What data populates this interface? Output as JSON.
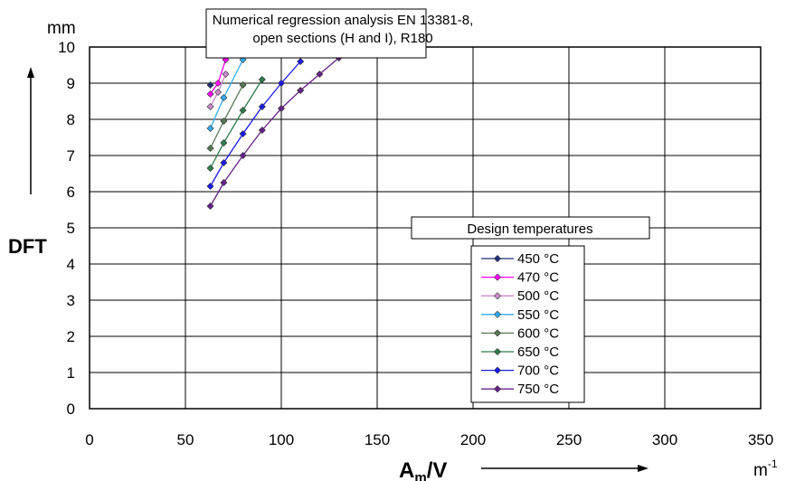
{
  "chart_data": {
    "type": "line",
    "title_lines": [
      "Numerical regression analysis EN 13381-8,",
      "open sections (H and I), R180"
    ],
    "legend_title": "Design temperatures",
    "xlabel_main": "A",
    "xlabel_sub": "m",
    "xlabel_tail": "/V",
    "x_unit_base": "m",
    "x_unit_exp": "-1",
    "ylabel": "DFT",
    "y_unit": "mm",
    "xlim": [
      0,
      350
    ],
    "ylim": [
      0,
      10
    ],
    "x_ticks": [
      "0",
      "50",
      "100",
      "150",
      "200",
      "250",
      "300",
      "350"
    ],
    "y_ticks": [
      "0",
      "1",
      "2",
      "3",
      "4",
      "5",
      "6",
      "7",
      "8",
      "9",
      "10"
    ],
    "grid": true,
    "legend_position": "right",
    "series": [
      {
        "name": "450 °C",
        "color": "#1f2f7a",
        "x": [
          63
        ],
        "y": [
          8.95
        ]
      },
      {
        "name": "470 °C",
        "color": "#ff00ff",
        "x": [
          63,
          67,
          71
        ],
        "y": [
          8.7,
          9.0,
          9.65
        ]
      },
      {
        "name": "500 °C",
        "color": "#cc88cc",
        "x": [
          63,
          67,
          71
        ],
        "y": [
          8.35,
          8.75,
          9.25
        ]
      },
      {
        "name": "550 °C",
        "color": "#33aaee",
        "x": [
          63,
          70,
          80
        ],
        "y": [
          7.75,
          8.6,
          9.65
        ]
      },
      {
        "name": "600 °C",
        "color": "#557755",
        "x": [
          63,
          70,
          80
        ],
        "y": [
          7.2,
          7.95,
          8.95
        ]
      },
      {
        "name": "650 °C",
        "color": "#2e7d4a",
        "x": [
          63,
          70,
          80,
          90
        ],
        "y": [
          6.65,
          7.35,
          8.25,
          9.1
        ]
      },
      {
        "name": "700 °C",
        "color": "#1a1aee",
        "x": [
          63,
          70,
          80,
          90,
          100,
          110
        ],
        "y": [
          6.15,
          6.8,
          7.6,
          8.35,
          9.0,
          9.6
        ]
      },
      {
        "name": "750 °C",
        "color": "#662288",
        "x": [
          63,
          70,
          80,
          90,
          100,
          110,
          120,
          130
        ],
        "y": [
          5.6,
          6.25,
          7.0,
          7.7,
          8.3,
          8.8,
          9.25,
          9.7
        ]
      }
    ]
  }
}
